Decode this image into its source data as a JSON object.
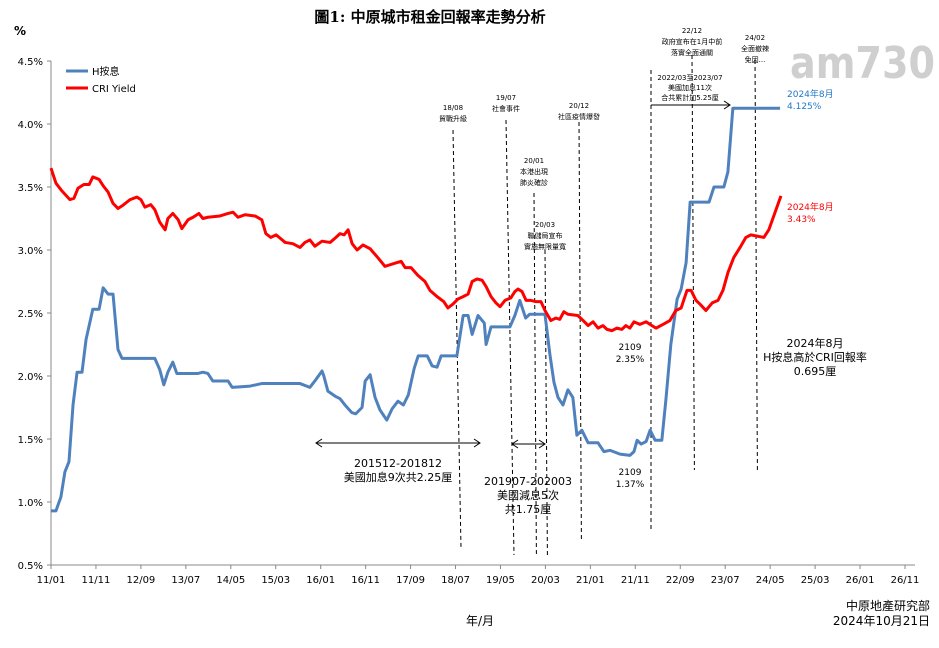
{
  "chart_data": {
    "type": "line",
    "title": "圖1: 中原城市租金回報率走勢分析",
    "ylabel": "%",
    "xlabel": "年/月",
    "x_unit": "months since 2011/01",
    "ylim": [
      0.5,
      4.5
    ],
    "xlim": [
      0,
      190
    ],
    "y_ticks": [
      "0.5%",
      "1.0%",
      "1.5%",
      "2.0%",
      "2.5%",
      "3.0%",
      "3.5%",
      "4.0%",
      "4.5%"
    ],
    "x_ticks": [
      "11/01",
      "11/11",
      "12/09",
      "13/07",
      "14/05",
      "15/03",
      "16/01",
      "16/11",
      "17/09",
      "18/07",
      "19/05",
      "20/03",
      "21/01",
      "21/11",
      "22/09",
      "23/07",
      "24/05",
      "25/03",
      "26/01",
      "26/11"
    ],
    "legend_position": "top-left",
    "series": [
      {
        "name": "H按息",
        "color": "#4F81BD",
        "points": [
          [
            0,
            0.93
          ],
          [
            1.1,
            0.93
          ],
          [
            2.2,
            1.04
          ],
          [
            3.1,
            1.24
          ],
          [
            4,
            1.32
          ],
          [
            4.9,
            1.77
          ],
          [
            5.8,
            2.03
          ],
          [
            6.9,
            2.03
          ],
          [
            7.8,
            2.29
          ],
          [
            9.3,
            2.53
          ],
          [
            10.7,
            2.53
          ],
          [
            11.6,
            2.7
          ],
          [
            12.7,
            2.65
          ],
          [
            13.8,
            2.65
          ],
          [
            14.9,
            2.21
          ],
          [
            15.8,
            2.14
          ],
          [
            23.1,
            2.14
          ],
          [
            24.2,
            2.05
          ],
          [
            25.1,
            1.93
          ],
          [
            26,
            2.03
          ],
          [
            27.1,
            2.11
          ],
          [
            28,
            2.02
          ],
          [
            32.7,
            2.02
          ],
          [
            33.8,
            2.03
          ],
          [
            34.9,
            2.02
          ],
          [
            36,
            1.96
          ],
          [
            39.4,
            1.96
          ],
          [
            40.3,
            1.91
          ],
          [
            44.3,
            1.92
          ],
          [
            46.9,
            1.94
          ],
          [
            48.7,
            1.94
          ],
          [
            55.4,
            1.94
          ],
          [
            57.6,
            1.91
          ],
          [
            58.9,
            1.97
          ],
          [
            60.3,
            2.04
          ],
          [
            60.7,
            2.0
          ],
          [
            61.6,
            1.88
          ],
          [
            63.2,
            1.84
          ],
          [
            64.3,
            1.82
          ],
          [
            65.4,
            1.77
          ],
          [
            66.9,
            1.71
          ],
          [
            67.8,
            1.7
          ],
          [
            69.2,
            1.75
          ],
          [
            69.9,
            1.96
          ],
          [
            71,
            2.01
          ],
          [
            72.1,
            1.83
          ],
          [
            73.2,
            1.73
          ],
          [
            74.7,
            1.65
          ],
          [
            75.9,
            1.74
          ],
          [
            77.2,
            1.8
          ],
          [
            78.4,
            1.77
          ],
          [
            79.5,
            1.85
          ],
          [
            80.8,
            2.06
          ],
          [
            81.7,
            2.16
          ],
          [
            83.7,
            2.16
          ],
          [
            84.8,
            2.08
          ],
          [
            85.9,
            2.07
          ],
          [
            86.8,
            2.16
          ],
          [
            90.3,
            2.16
          ],
          [
            91.7,
            2.48
          ],
          [
            92.8,
            2.48
          ],
          [
            93.7,
            2.33
          ],
          [
            95,
            2.48
          ],
          [
            96.4,
            2.42
          ],
          [
            96.8,
            2.25
          ],
          [
            97.9,
            2.39
          ],
          [
            102.1,
            2.39
          ],
          [
            103.2,
            2.48
          ],
          [
            104.3,
            2.6
          ],
          [
            105.6,
            2.46
          ],
          [
            106.5,
            2.49
          ],
          [
            109.9,
            2.49
          ],
          [
            111,
            2.17
          ],
          [
            111.9,
            1.95
          ],
          [
            112.8,
            1.83
          ],
          [
            113.9,
            1.77
          ],
          [
            115,
            1.89
          ],
          [
            116.1,
            1.83
          ],
          [
            117,
            1.53
          ],
          [
            118.1,
            1.57
          ],
          [
            119.5,
            1.47
          ],
          [
            121.7,
            1.47
          ],
          [
            123,
            1.4
          ],
          [
            124.4,
            1.41
          ],
          [
            126.6,
            1.38
          ],
          [
            128.8,
            1.37
          ],
          [
            129.7,
            1.4
          ],
          [
            130.4,
            1.49
          ],
          [
            131.3,
            1.46
          ],
          [
            132.4,
            1.48
          ],
          [
            133.3,
            1.57
          ],
          [
            134.4,
            1.49
          ],
          [
            135.9,
            1.49
          ],
          [
            136.8,
            1.81
          ],
          [
            137.9,
            2.25
          ],
          [
            139.3,
            2.61
          ],
          [
            140.2,
            2.69
          ],
          [
            141.3,
            2.9
          ],
          [
            142.2,
            3.38
          ],
          [
            146.4,
            3.38
          ],
          [
            147.5,
            3.5
          ],
          [
            149.7,
            3.5
          ],
          [
            150.6,
            3.62
          ],
          [
            151.7,
            4.125
          ],
          [
            162.2,
            4.125
          ]
        ]
      },
      {
        "name": "CRI Yield",
        "color": "#FF0000",
        "points": [
          [
            0,
            3.65
          ],
          [
            1.1,
            3.53
          ],
          [
            2.4,
            3.47
          ],
          [
            4.2,
            3.4
          ],
          [
            5.1,
            3.41
          ],
          [
            6,
            3.49
          ],
          [
            7.3,
            3.52
          ],
          [
            8.5,
            3.52
          ],
          [
            9.3,
            3.58
          ],
          [
            10.7,
            3.56
          ],
          [
            11.6,
            3.51
          ],
          [
            12.7,
            3.46
          ],
          [
            13.8,
            3.37
          ],
          [
            14.9,
            3.33
          ],
          [
            15.8,
            3.35
          ],
          [
            17.6,
            3.4
          ],
          [
            19.1,
            3.42
          ],
          [
            20,
            3.4
          ],
          [
            20.9,
            3.34
          ],
          [
            22.2,
            3.36
          ],
          [
            23.1,
            3.32
          ],
          [
            24.2,
            3.22
          ],
          [
            25.4,
            3.16
          ],
          [
            26,
            3.25
          ],
          [
            27.1,
            3.29
          ],
          [
            28.3,
            3.24
          ],
          [
            29.1,
            3.17
          ],
          [
            30.5,
            3.24
          ],
          [
            31.6,
            3.26
          ],
          [
            32.9,
            3.29
          ],
          [
            33.8,
            3.25
          ],
          [
            34.9,
            3.26
          ],
          [
            37.6,
            3.27
          ],
          [
            39.4,
            3.29
          ],
          [
            40.5,
            3.3
          ],
          [
            41.6,
            3.26
          ],
          [
            43.2,
            3.28
          ],
          [
            45.4,
            3.27
          ],
          [
            46.9,
            3.24
          ],
          [
            47.8,
            3.13
          ],
          [
            48.9,
            3.1
          ],
          [
            50.1,
            3.12
          ],
          [
            52.1,
            3.06
          ],
          [
            53.8,
            3.05
          ],
          [
            55.4,
            3.02
          ],
          [
            56.5,
            3.06
          ],
          [
            57.6,
            3.08
          ],
          [
            58.7,
            3.03
          ],
          [
            60.3,
            3.07
          ],
          [
            62.1,
            3.06
          ],
          [
            63.4,
            3.1
          ],
          [
            64.3,
            3.13
          ],
          [
            65.2,
            3.12
          ],
          [
            66.1,
            3.16
          ],
          [
            67,
            3.05
          ],
          [
            68.1,
            3.0
          ],
          [
            69.4,
            3.04
          ],
          [
            71,
            3.01
          ],
          [
            72.7,
            2.94
          ],
          [
            74.3,
            2.87
          ],
          [
            76.1,
            2.89
          ],
          [
            77.9,
            2.91
          ],
          [
            78.8,
            2.86
          ],
          [
            80.1,
            2.86
          ],
          [
            81.6,
            2.8
          ],
          [
            83.2,
            2.75
          ],
          [
            84.3,
            2.68
          ],
          [
            85.9,
            2.63
          ],
          [
            87.4,
            2.59
          ],
          [
            88.3,
            2.54
          ],
          [
            89.4,
            2.57
          ],
          [
            90.5,
            2.61
          ],
          [
            91.7,
            2.63
          ],
          [
            92.8,
            2.65
          ],
          [
            93.7,
            2.75
          ],
          [
            94.8,
            2.77
          ],
          [
            95.9,
            2.76
          ],
          [
            96.8,
            2.71
          ],
          [
            97.9,
            2.63
          ],
          [
            99,
            2.58
          ],
          [
            99.9,
            2.55
          ],
          [
            101,
            2.6
          ],
          [
            102.3,
            2.62
          ],
          [
            103.2,
            2.67
          ],
          [
            103.9,
            2.69
          ],
          [
            104.8,
            2.67
          ],
          [
            105.7,
            2.6
          ],
          [
            106.8,
            2.6
          ],
          [
            107.9,
            2.59
          ],
          [
            109,
            2.59
          ],
          [
            109.9,
            2.52
          ],
          [
            111.2,
            2.44
          ],
          [
            112.3,
            2.46
          ],
          [
            113.2,
            2.45
          ],
          [
            114.1,
            2.51
          ],
          [
            115,
            2.49
          ],
          [
            117.2,
            2.48
          ],
          [
            118.4,
            2.44
          ],
          [
            119.5,
            2.4
          ],
          [
            120.6,
            2.43
          ],
          [
            121.7,
            2.38
          ],
          [
            122.8,
            2.4
          ],
          [
            123.7,
            2.37
          ],
          [
            124.8,
            2.36
          ],
          [
            125.9,
            2.38
          ],
          [
            127,
            2.37
          ],
          [
            127.9,
            2.4
          ],
          [
            128.8,
            2.38
          ],
          [
            129.7,
            2.43
          ],
          [
            131,
            2.41
          ],
          [
            132.4,
            2.43
          ],
          [
            133.7,
            2.4
          ],
          [
            134.6,
            2.38
          ],
          [
            136.2,
            2.41
          ],
          [
            137.7,
            2.44
          ],
          [
            139,
            2.52
          ],
          [
            140.2,
            2.54
          ],
          [
            141.5,
            2.68
          ],
          [
            142.4,
            2.68
          ],
          [
            143.5,
            2.6
          ],
          [
            144.4,
            2.57
          ],
          [
            145.7,
            2.52
          ],
          [
            147.1,
            2.58
          ],
          [
            148.4,
            2.6
          ],
          [
            149.5,
            2.68
          ],
          [
            150.6,
            2.82
          ],
          [
            151.9,
            2.94
          ],
          [
            153.3,
            3.02
          ],
          [
            154.6,
            3.1
          ],
          [
            155.7,
            3.12
          ],
          [
            157.1,
            3.11
          ],
          [
            158.6,
            3.1
          ],
          [
            159.7,
            3.16
          ],
          [
            160.8,
            3.27
          ],
          [
            162.4,
            3.43
          ]
        ]
      }
    ],
    "events": [
      {
        "date": "18/08",
        "text": [
          "貿戰升級"
        ]
      },
      {
        "date": "19/07",
        "text": [
          "社會事件"
        ]
      },
      {
        "date": "20/01",
        "text": [
          "本港出現",
          "肺炎確診"
        ]
      },
      {
        "date": "20/03",
        "text": [
          "聯儲局宣布",
          "實施無限量寬"
        ]
      },
      {
        "date": "20/12",
        "text": [
          "社區疫情爆發"
        ]
      },
      {
        "date": "22/12",
        "text": [
          "政府宣布在1月中前",
          "落實全面通關"
        ]
      },
      {
        "date": "24/02",
        "text": [
          "全面撤辣",
          "免因..."
        ]
      }
    ],
    "ranges": [
      {
        "label": "201512-201812",
        "text": [
          "美國加息9次共2.25厘"
        ]
      },
      {
        "label": "201907-202003",
        "text": [
          "美國減息5次",
          "共1.75厘"
        ]
      },
      {
        "label": "2022/03至2023/07",
        "text": [
          "美國加息11次",
          "合共累計加5.25厘"
        ]
      }
    ],
    "annotations": {
      "hibor_end": [
        "2024年8月",
        "4.125%"
      ],
      "cri_end": [
        "2024年8月",
        "3.43%"
      ],
      "cri_low": [
        "2109",
        "2.35%"
      ],
      "hibor_low": [
        "2109",
        "1.37%"
      ],
      "spread": [
        "2024年8月",
        "H按息高於CRI回報率",
        "0.695厘"
      ]
    }
  },
  "source": [
    "中原地產研究部",
    "2024年10月21日"
  ],
  "watermark": "am730"
}
